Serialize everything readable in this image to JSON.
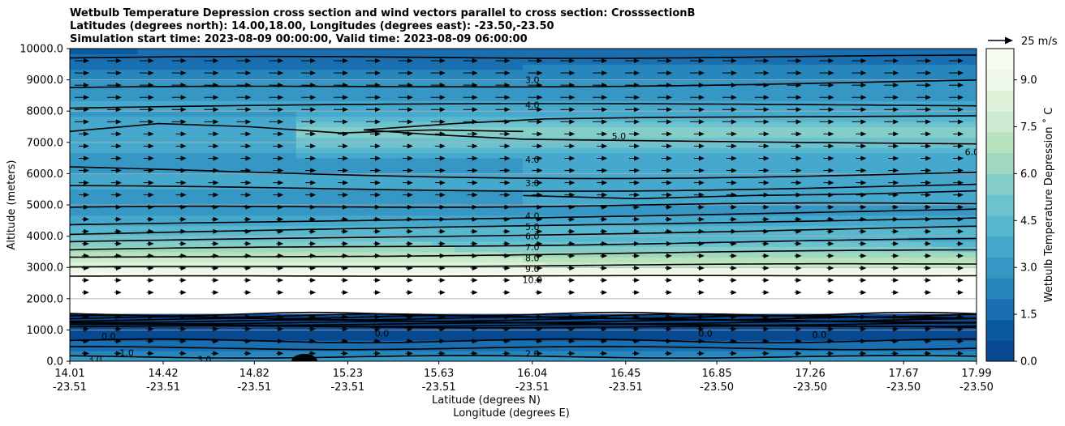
{
  "chart_data": {
    "type": "contour",
    "title_lines": [
      "Wetbulb Temperature Depression cross section and wind vectors parallel to cross section: CrosssectionB",
      "Latitudes (degrees north): 14.00,18.00, Longitudes (degrees east): -23.50,-23.50",
      "Simulation start time: 2023-08-09 00:00:00, Valid time: 2023-08-09 06:00:00"
    ],
    "ylabel": "Altitude (meters)",
    "xlabel_lines": [
      "Latitude (degrees N)",
      "Longitude (degrees E)"
    ],
    "ylim": [
      0,
      10000
    ],
    "yticks": [
      "0.0",
      "1000.0",
      "2000.0",
      "3000.0",
      "4000.0",
      "5000.0",
      "6000.0",
      "7000.0",
      "8000.0",
      "9000.0",
      "10000.0"
    ],
    "xticks": [
      {
        "lat": "14.01",
        "lon": "-23.51"
      },
      {
        "lat": "14.42",
        "lon": "-23.51"
      },
      {
        "lat": "14.82",
        "lon": "-23.51"
      },
      {
        "lat": "15.23",
        "lon": "-23.51"
      },
      {
        "lat": "15.63",
        "lon": "-23.51"
      },
      {
        "lat": "16.04",
        "lon": "-23.51"
      },
      {
        "lat": "16.45",
        "lon": "-23.51"
      },
      {
        "lat": "16.85",
        "lon": "-23.50"
      },
      {
        "lat": "17.26",
        "lon": "-23.50"
      },
      {
        "lat": "17.67",
        "lon": "-23.50"
      },
      {
        "lat": "17.99",
        "lon": "-23.50"
      }
    ],
    "grid": "horizontal",
    "colorbar": {
      "label": "Wetbulb Temperature Depression ˚ C",
      "min": 0,
      "max": 10,
      "ticks": [
        "0.0",
        "1.5",
        "3.0",
        "4.5",
        "6.0",
        "7.5",
        "9.0"
      ],
      "colors": [
        "#08488e",
        "#0b5a9f",
        "#1a6fb0",
        "#2786bc",
        "#3697c5",
        "#45a8cc",
        "#57b7cf",
        "#6cc3cf",
        "#84cdc8",
        "#9fd8bf",
        "#b7e2bc",
        "#cbead0",
        "#ddf2d8",
        "#edf8e8",
        "#f7fcf0"
      ]
    },
    "quiver_key": {
      "label": "25 m/s",
      "speed": 25
    },
    "contour_labels": [
      {
        "text": "3.0",
        "lat": 16.04,
        "alt": 9000
      },
      {
        "text": "4.0",
        "lat": 16.04,
        "alt": 8200
      },
      {
        "text": "5.0",
        "lat": 16.42,
        "alt": 7200
      },
      {
        "text": "4.0",
        "lat": 16.04,
        "alt": 6450
      },
      {
        "text": "3.0",
        "lat": 16.04,
        "alt": 5700
      },
      {
        "text": "6.0",
        "lat": 17.97,
        "alt": 6700
      },
      {
        "text": "4.0",
        "lat": 16.04,
        "alt": 4650
      },
      {
        "text": "5.0",
        "lat": 16.04,
        "alt": 4300
      },
      {
        "text": "6.0",
        "lat": 16.04,
        "alt": 4000
      },
      {
        "text": "7.0",
        "lat": 16.04,
        "alt": 3650
      },
      {
        "text": "8.0",
        "lat": 16.04,
        "alt": 3300
      },
      {
        "text": "9.0",
        "lat": 16.04,
        "alt": 2950
      },
      {
        "text": "10.0",
        "lat": 16.04,
        "alt": 2600
      },
      {
        "text": "0.0",
        "lat": 14.18,
        "alt": 800
      },
      {
        "text": "0.0",
        "lat": 15.38,
        "alt": 900
      },
      {
        "text": "0.0",
        "lat": 16.8,
        "alt": 900
      },
      {
        "text": "0.0",
        "lat": 17.3,
        "alt": 850
      },
      {
        "text": "1.0",
        "lat": 14.26,
        "alt": 270
      },
      {
        "text": "2.0",
        "lat": 16.04,
        "alt": 250
      },
      {
        "text": "3.0",
        "lat": 14.12,
        "alt": 60
      },
      {
        "text": "3.0",
        "lat": 14.6,
        "alt": 60
      }
    ],
    "data_gap_altitudes": [
      1550,
      2700
    ]
  }
}
